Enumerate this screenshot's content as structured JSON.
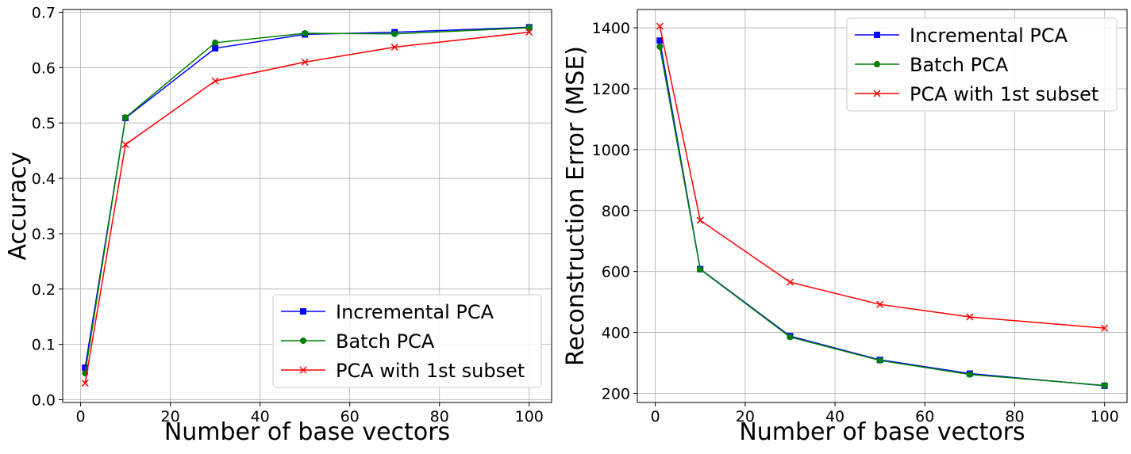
{
  "chart_data": [
    {
      "type": "line",
      "title": "",
      "xlabel": "Number of base vectors",
      "ylabel": "Accuracy",
      "xlim": [
        -4,
        105
      ],
      "ylim": [
        -0.005,
        0.705
      ],
      "xticks": [
        0,
        20,
        40,
        60,
        80,
        100
      ],
      "yticks": [
        0.0,
        0.1,
        0.2,
        0.3,
        0.4,
        0.5,
        0.6,
        0.7
      ],
      "ytick_labels": [
        "0.0",
        "0.1",
        "0.2",
        "0.3",
        "0.4",
        "0.5",
        "0.6",
        "0.7"
      ],
      "grid": true,
      "legend": "lower-right",
      "x": [
        1,
        10,
        30,
        50,
        70,
        100
      ],
      "series": [
        {
          "name": "Incremental PCA",
          "color": "#0000ff",
          "marker": "square",
          "values": [
            0.058,
            0.509,
            0.635,
            0.66,
            0.664,
            0.673
          ]
        },
        {
          "name": "Batch PCA",
          "color": "#008000",
          "marker": "circle",
          "values": [
            0.048,
            0.51,
            0.645,
            0.662,
            0.661,
            0.672
          ]
        },
        {
          "name": "PCA with 1st subset",
          "color": "#ff0000",
          "marker": "x",
          "values": [
            0.03,
            0.461,
            0.576,
            0.61,
            0.637,
            0.664
          ]
        }
      ]
    },
    {
      "type": "line",
      "title": "",
      "xlabel": "Number of base vectors",
      "ylabel": "Reconstruction Error (MSE)",
      "xlim": [
        -4,
        105
      ],
      "ylim": [
        170,
        1460
      ],
      "xticks": [
        0,
        20,
        40,
        60,
        80,
        100
      ],
      "yticks": [
        200,
        400,
        600,
        800,
        1000,
        1200,
        1400
      ],
      "ytick_labels": [
        "200",
        "400",
        "600",
        "800",
        "1000",
        "1200",
        "1400"
      ],
      "grid": true,
      "legend": "upper-right",
      "x": [
        1,
        10,
        30,
        50,
        70,
        100
      ],
      "series": [
        {
          "name": "Incremental PCA",
          "color": "#0000ff",
          "marker": "square",
          "values": [
            1358,
            608,
            388,
            310,
            265,
            225
          ]
        },
        {
          "name": "Batch PCA",
          "color": "#008000",
          "marker": "circle",
          "values": [
            1338,
            607,
            385,
            308,
            262,
            226
          ]
        },
        {
          "name": "PCA with 1st subset",
          "color": "#ff0000",
          "marker": "x",
          "values": [
            1405,
            768,
            565,
            492,
            451,
            414
          ]
        }
      ]
    }
  ]
}
